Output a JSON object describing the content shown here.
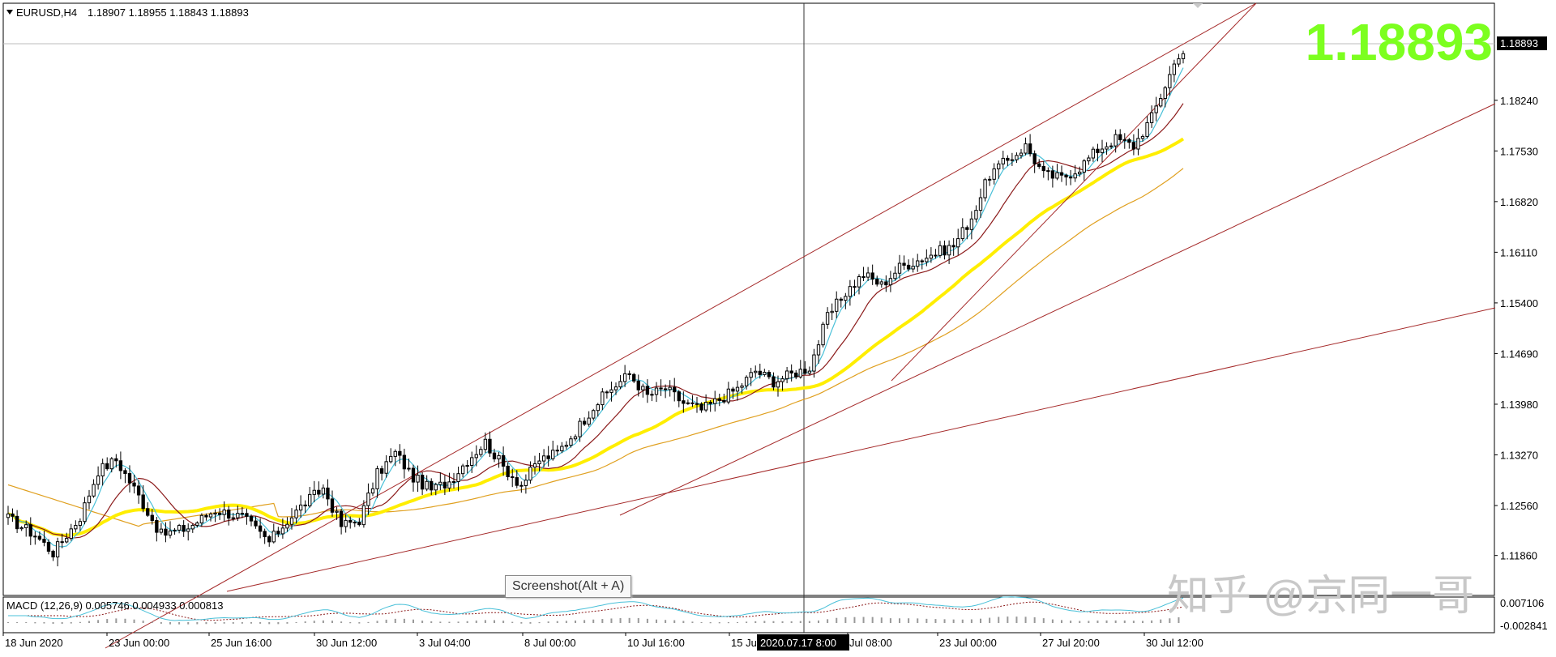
{
  "header": {
    "symbol": "EURUSD,H4",
    "ohlc": "1.18907 1.18955 1.18843 1.18893"
  },
  "big_price": "1.18893",
  "tooltip": "Screenshot(Alt + A)",
  "watermark": "知乎 @京同一哥",
  "crosshair_label": "2020.07.17 8:00",
  "macd": {
    "label": "MACD (12,26,9) 0.005746 0.004933 0.000813",
    "axis_labels": [
      "0.007106",
      "-0.002841"
    ]
  },
  "colors": {
    "bg": "#ffffff",
    "grid": "#cccccc",
    "ma_fast": "#49c0d8",
    "ma_mid": "#8b1a1a",
    "ma_slow": "#ffee00",
    "ma_200": "#e0a020",
    "trendline": "#a52a2a",
    "big_price": "#7cff1f"
  },
  "chart_data": {
    "type": "candlestick",
    "symbol": "EURUSD",
    "timeframe": "H4",
    "ylim": [
      1.113,
      1.196
    ],
    "y_ticks": [
      "1.18240",
      "1.17530",
      "1.16820",
      "1.16110",
      "1.15400",
      "1.14690",
      "1.13980",
      "1.13270",
      "1.12560",
      "1.11860"
    ],
    "x_ticks": [
      "18 Jun 2020",
      "23 Jun 00:00",
      "25 Jun 16:00",
      "30 Jun 12:00",
      "3 Jul 04:00",
      "8 Jul 00:00",
      "10 Jul 16:00",
      "15 Ju",
      "Jul 08:00",
      "23 Jul 00:00",
      "27 Jul 20:00",
      "30 Jul 12:00"
    ],
    "current_price": "1.18893",
    "ohlc_anchors_close": [
      [
        0,
        1.1238
      ],
      [
        6,
        1.1215
      ],
      [
        10,
        1.119
      ],
      [
        16,
        1.124
      ],
      [
        20,
        1.1305
      ],
      [
        24,
        1.132
      ],
      [
        28,
        1.128
      ],
      [
        34,
        1.1215
      ],
      [
        40,
        1.1225
      ],
      [
        46,
        1.125
      ],
      [
        52,
        1.124
      ],
      [
        58,
        1.1205
      ],
      [
        62,
        1.1235
      ],
      [
        66,
        1.126
      ],
      [
        70,
        1.128
      ],
      [
        74,
        1.1228
      ],
      [
        78,
        1.1236
      ],
      [
        82,
        1.13
      ],
      [
        86,
        1.133
      ],
      [
        90,
        1.1295
      ],
      [
        94,
        1.1278
      ],
      [
        98,
        1.129
      ],
      [
        102,
        1.132
      ],
      [
        106,
        1.1345
      ],
      [
        110,
        1.131
      ],
      [
        114,
        1.1285
      ],
      [
        118,
        1.132
      ],
      [
        122,
        1.133
      ],
      [
        126,
        1.136
      ],
      [
        130,
        1.1395
      ],
      [
        134,
        1.142
      ],
      [
        138,
        1.144
      ],
      [
        142,
        1.141
      ],
      [
        146,
        1.142
      ],
      [
        150,
        1.14
      ],
      [
        154,
        1.139
      ],
      [
        158,
        1.1405
      ],
      [
        162,
        1.142
      ],
      [
        166,
        1.1445
      ],
      [
        170,
        1.143
      ],
      [
        174,
        1.144
      ],
      [
        178,
        1.145
      ],
      [
        182,
        1.152
      ],
      [
        186,
        1.1555
      ],
      [
        190,
        1.158
      ],
      [
        194,
        1.1565
      ],
      [
        198,
        1.159
      ],
      [
        202,
        1.16
      ],
      [
        206,
        1.161
      ],
      [
        210,
        1.162
      ],
      [
        214,
        1.166
      ],
      [
        218,
        1.172
      ],
      [
        222,
        1.174
      ],
      [
        226,
        1.176
      ],
      [
        230,
        1.172
      ],
      [
        234,
        1.1715
      ],
      [
        238,
        1.173
      ],
      [
        242,
        1.1755
      ],
      [
        246,
        1.177
      ],
      [
        250,
        1.176
      ],
      [
        254,
        1.18
      ],
      [
        258,
        1.186
      ],
      [
        260,
        1.1889
      ]
    ]
  }
}
